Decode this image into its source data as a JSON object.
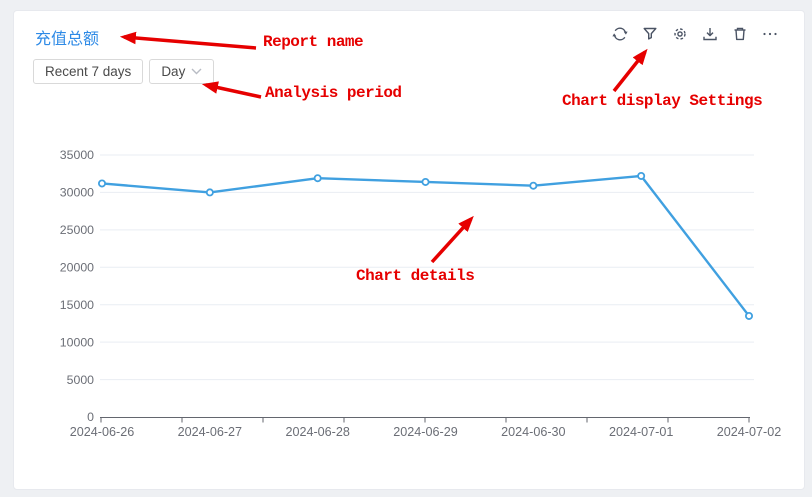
{
  "header": {
    "title": "充值总额"
  },
  "controls": {
    "range_label": "Recent 7 days",
    "period_label": "Day"
  },
  "toolbar": {
    "icons": [
      "refresh",
      "filter",
      "settings",
      "download",
      "delete",
      "more"
    ]
  },
  "annotations": {
    "color": "#e60000",
    "report_name": "Report name",
    "analysis_period": "Analysis period",
    "chart_settings": "Chart display Settings",
    "chart_details": "Chart details"
  },
  "chart_data": {
    "type": "line",
    "title": "充值总额",
    "categories": [
      "2024-06-26",
      "2024-06-27",
      "2024-06-28",
      "2024-06-29",
      "2024-06-30",
      "2024-07-01",
      "2024-07-02"
    ],
    "series": [
      {
        "name": "充值总额",
        "values": [
          31200,
          30000,
          31900,
          31400,
          30900,
          32200,
          13500
        ]
      }
    ],
    "xlabel": "",
    "ylabel": "",
    "ylim": [
      0,
      35000
    ],
    "y_ticks": [
      0,
      5000,
      10000,
      15000,
      20000,
      25000,
      30000,
      35000
    ],
    "grid": true,
    "legend": "none",
    "line_color": "#40a0e0",
    "point_style": "hollow-circle"
  }
}
